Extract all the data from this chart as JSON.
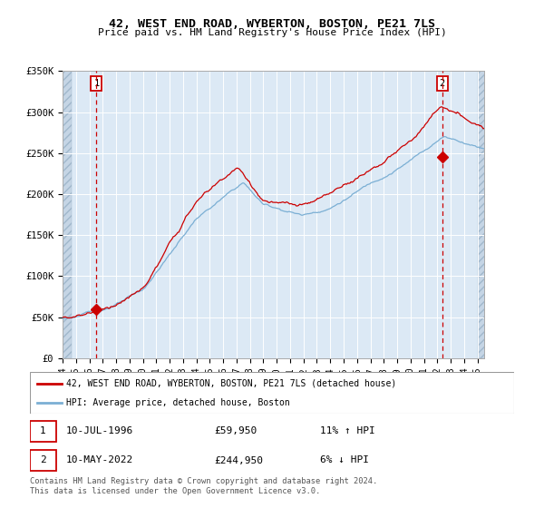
{
  "title1": "42, WEST END ROAD, WYBERTON, BOSTON, PE21 7LS",
  "title2": "Price paid vs. HM Land Registry's House Price Index (HPI)",
  "ylabel_ticks": [
    "£0",
    "£50K",
    "£100K",
    "£150K",
    "£200K",
    "£250K",
    "£300K",
    "£350K"
  ],
  "ylim": [
    0,
    350000
  ],
  "xlim_start": 1994.0,
  "xlim_end": 2025.5,
  "sale1_date": 1996.53,
  "sale1_price": 59950,
  "sale2_date": 2022.36,
  "sale2_price": 244950,
  "legend_line1": "42, WEST END ROAD, WYBERTON, BOSTON, PE21 7LS (detached house)",
  "legend_line2": "HPI: Average price, detached house, Boston",
  "footer": "Contains HM Land Registry data © Crown copyright and database right 2024.\nThis data is licensed under the Open Government Licence v3.0.",
  "hpi_color": "#7bafd4",
  "price_color": "#cc0000",
  "marker_color": "#cc0000",
  "bg_color": "#dce9f5",
  "hatch_color": "#c8d8e8",
  "grid_color": "#ffffff",
  "vline_color": "#cc0000",
  "box_color": "#cc0000",
  "ann1_date": "10-JUL-1996",
  "ann1_price": "£59,950",
  "ann1_hpi": "11% ↑ HPI",
  "ann2_date": "10-MAY-2022",
  "ann2_price": "£244,950",
  "ann2_hpi": "6% ↓ HPI"
}
